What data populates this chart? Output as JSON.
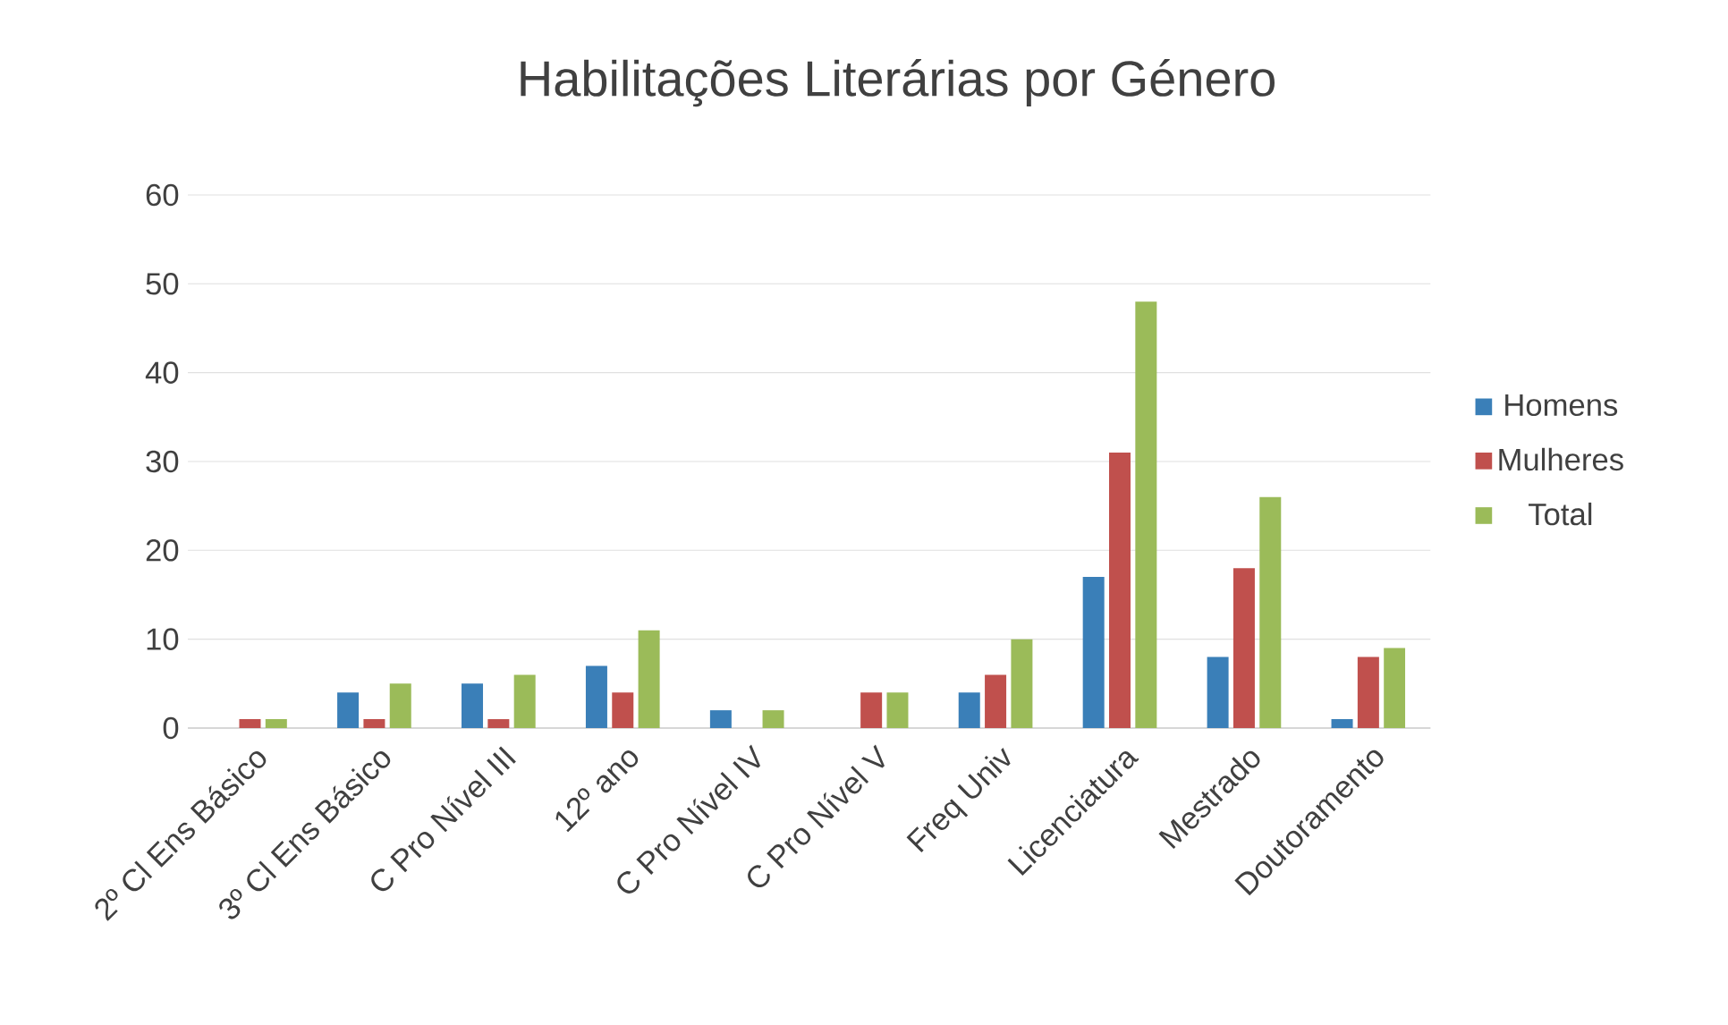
{
  "chart_data": {
    "type": "bar",
    "title": "Habilitações Literárias por Género",
    "categories": [
      "2º Cl Ens Básico",
      "3º Cl Ens Básico",
      "C Pro Nível III",
      "12º ano",
      "C Pro Nível IV",
      "C Pro Nível V",
      "Freq Univ",
      "Licenciatura",
      "Mestrado",
      "Doutoramento"
    ],
    "series": [
      {
        "name": "Homens",
        "color": "#3a7fb8",
        "values": [
          0,
          4,
          5,
          7,
          2,
          0,
          4,
          17,
          8,
          1
        ]
      },
      {
        "name": "Mulheres",
        "color": "#c0504d",
        "values": [
          1,
          1,
          1,
          4,
          0,
          4,
          6,
          31,
          18,
          8
        ]
      },
      {
        "name": "Total",
        "color": "#9bbb59",
        "values": [
          1,
          5,
          6,
          11,
          2,
          4,
          10,
          48,
          26,
          9
        ]
      }
    ],
    "ylim": [
      0,
      60
    ],
    "yticks": [
      0,
      10,
      20,
      30,
      40,
      50,
      60
    ],
    "grid": "y",
    "legend": "right"
  }
}
